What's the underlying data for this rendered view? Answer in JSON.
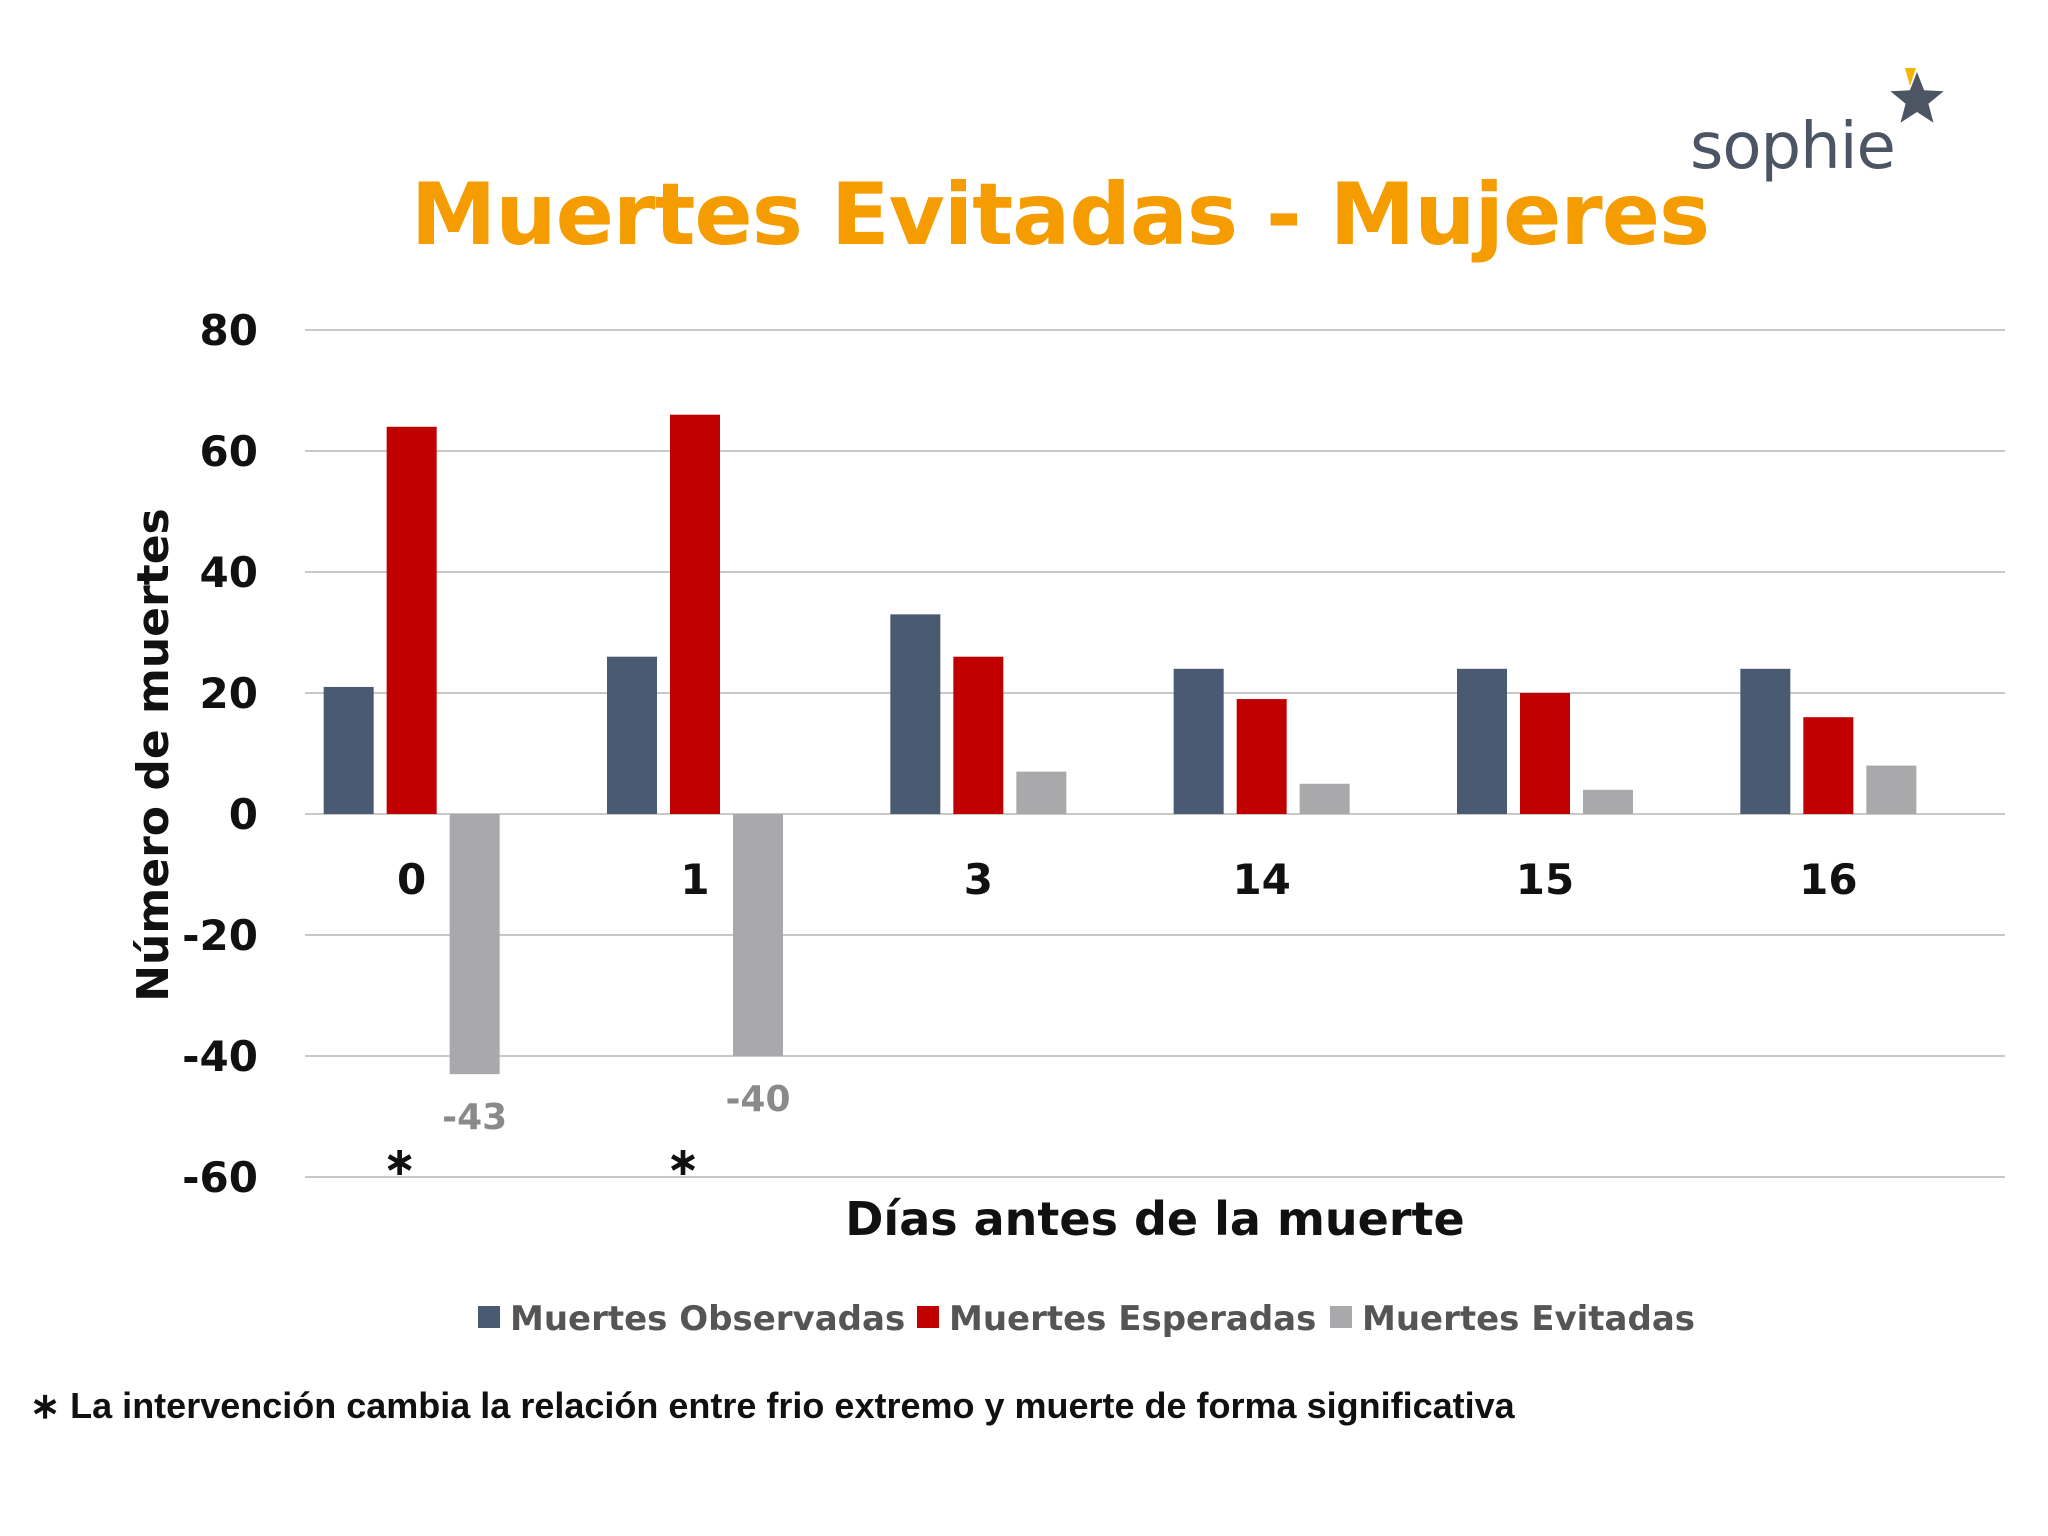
{
  "logo": {
    "text": "sophie"
  },
  "footnote": {
    "mark": "∗",
    "text": "La intervención cambia la relación entre frio extremo y muerte de forma significativa"
  },
  "colors": {
    "observadas": "#4a5a73",
    "esperadas": "#c00000",
    "evitadas": "#a9a9ab",
    "title": "#f59c00",
    "logo_star": "#4b5563",
    "logo_accent": "#f2b705"
  },
  "chart_data": {
    "type": "bar",
    "title": "Muertes Evitadas - Mujeres",
    "xlabel": "Días antes de la muerte",
    "ylabel": "Número de muertes",
    "categories": [
      "0",
      "1",
      "3",
      "14",
      "15",
      "16"
    ],
    "ylim": [
      -60,
      80
    ],
    "yticks": [
      "80",
      "60",
      "40",
      "20",
      "0",
      "-20",
      "-40",
      "-60"
    ],
    "grid": true,
    "legend_position": "bottom",
    "series": [
      {
        "name": "Muertes Observadas",
        "values": [
          21,
          26,
          33,
          24,
          24,
          24
        ],
        "color": "#4a5a73"
      },
      {
        "name": "Muertes Esperadas",
        "values": [
          64,
          66,
          26,
          19,
          20,
          16
        ],
        "color": "#c00000"
      },
      {
        "name": "Muertes Evitadas",
        "values": [
          -43,
          -40,
          7,
          5,
          4,
          8
        ],
        "color": "#a9a9ab"
      }
    ],
    "data_labels": [
      "-43",
      "-40"
    ],
    "significance_mark": "∗",
    "significant_categories": [
      "0",
      "1"
    ]
  }
}
